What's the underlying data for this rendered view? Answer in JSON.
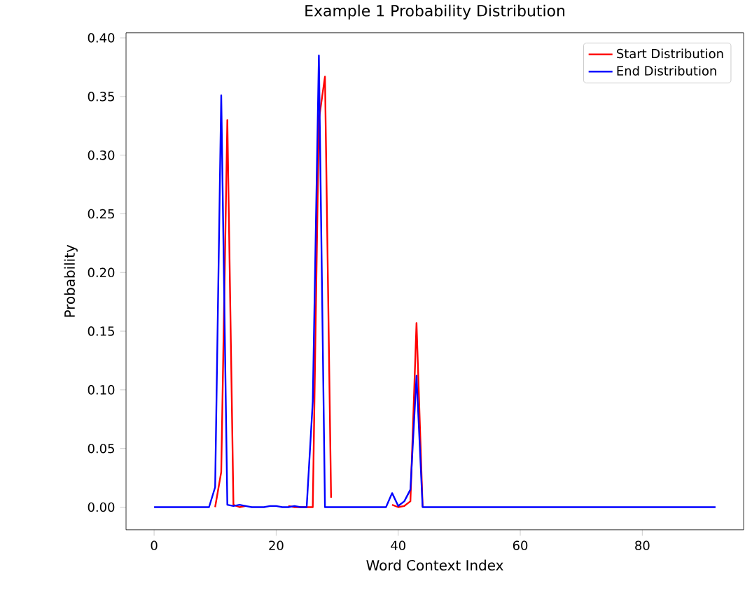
{
  "chart_data": {
    "type": "line",
    "title": "Example 1 Probability Distribution",
    "xlabel": "Word Context Index",
    "ylabel": "Probability",
    "x": [
      0,
      1,
      2,
      3,
      4,
      5,
      6,
      7,
      8,
      9,
      10,
      11,
      12,
      13,
      14,
      15,
      16,
      17,
      18,
      19,
      20,
      21,
      22,
      23,
      24,
      25,
      26,
      27,
      28,
      29,
      30,
      31,
      32,
      33,
      34,
      35,
      36,
      37,
      38,
      39,
      40,
      41,
      42,
      43,
      44,
      45,
      46,
      47,
      48,
      49,
      50,
      51,
      52,
      53,
      54,
      55,
      56,
      57,
      58,
      59,
      60,
      61,
      62,
      63,
      64,
      65,
      66,
      67,
      68,
      69,
      70,
      71,
      72,
      73,
      74,
      75,
      76,
      77,
      78,
      79,
      80,
      81,
      82,
      83,
      84,
      85,
      86,
      87,
      88,
      89,
      90,
      91,
      92
    ],
    "series": [
      {
        "name": "Start Distribution",
        "color": "#ff0000",
        "values": [
          null,
          null,
          null,
          null,
          null,
          null,
          null,
          null,
          null,
          null,
          0,
          0.03,
          0.33,
          0.002,
          0,
          0.001,
          null,
          null,
          null,
          null,
          null,
          null,
          0.001,
          0,
          0,
          0,
          0,
          0.33,
          0.367,
          0.008,
          null,
          null,
          null,
          null,
          null,
          null,
          null,
          null,
          null,
          0.002,
          0,
          0.001,
          0.005,
          0.157,
          0,
          null,
          null,
          null,
          null,
          null,
          null,
          null,
          null,
          null,
          null,
          null,
          null,
          null,
          null,
          null,
          null,
          null,
          null,
          null,
          null,
          null,
          null,
          null,
          null,
          null,
          null,
          null,
          null,
          null,
          null,
          null,
          null,
          null,
          null,
          null,
          null,
          null,
          null,
          null,
          null,
          null,
          null,
          null,
          null,
          null,
          null,
          null,
          null
        ]
      },
      {
        "name": "End Distribution",
        "color": "#0000ff",
        "values": [
          0,
          0,
          0,
          0,
          0,
          0,
          0,
          0,
          0,
          0,
          0.017,
          0.351,
          0.002,
          0.001,
          0.002,
          0.001,
          0,
          0,
          0,
          0.001,
          0.001,
          0,
          0,
          0.001,
          0,
          0,
          0.09,
          0.385,
          0,
          0,
          0,
          0,
          0,
          0,
          0,
          0,
          0,
          0,
          0,
          0.012,
          0.001,
          0.005,
          0.015,
          0.112,
          0,
          0,
          0,
          0,
          0,
          0,
          0,
          0,
          0,
          0,
          0,
          0,
          0,
          0,
          0,
          0,
          0,
          0,
          0,
          0,
          0,
          0,
          0,
          0,
          0,
          0,
          0,
          0,
          0,
          0,
          0,
          0,
          0,
          0,
          0,
          0,
          0,
          0,
          0,
          0,
          0,
          0,
          0,
          0,
          0,
          0,
          0,
          0,
          0
        ]
      }
    ],
    "xlim": [
      -4.6,
      96.6
    ],
    "ylim": [
      -0.0193,
      0.4043
    ],
    "xticks": [
      0,
      20,
      40,
      60,
      80
    ],
    "yticks": [
      {
        "value": 0,
        "label": "0.00"
      },
      {
        "value": 0.05,
        "label": "0.05"
      },
      {
        "value": 0.1,
        "label": "0.10"
      },
      {
        "value": 0.15,
        "label": "0.15"
      },
      {
        "value": 0.2,
        "label": "0.20"
      },
      {
        "value": 0.25,
        "label": "0.25"
      },
      {
        "value": 0.3,
        "label": "0.30"
      },
      {
        "value": 0.35,
        "label": "0.35"
      },
      {
        "value": 0.4,
        "label": "0.40"
      }
    ],
    "legend": "top right",
    "marker": "none",
    "line_style": "solid"
  }
}
